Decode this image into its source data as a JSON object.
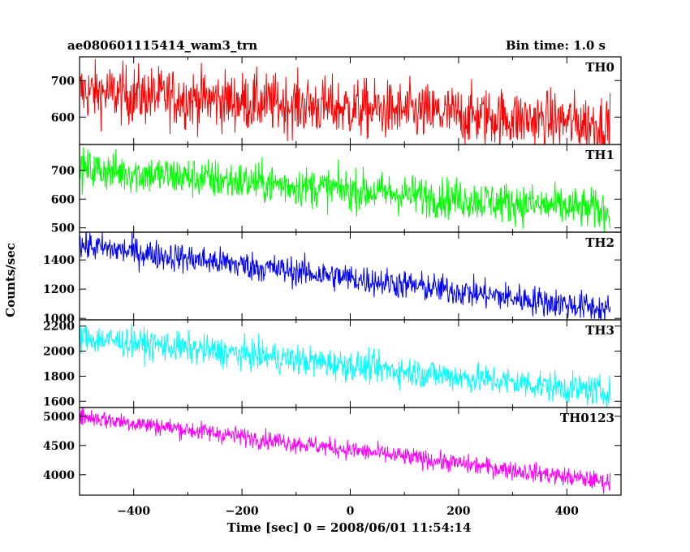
{
  "header": {
    "title": "ae080601115414_wam3_trn",
    "bin_time": "Bin time: 1.0 s"
  },
  "chart_data": {
    "type": "line",
    "ylabel": "Counts/sec",
    "xlabel": "Time [sec] 0 = 2008/06/01 11:54:14",
    "xlim": [
      -500,
      500
    ],
    "x_range": [
      -500,
      480
    ],
    "xticks": [
      -400,
      -200,
      0,
      200,
      400
    ],
    "grid": false,
    "panels": [
      {
        "name": "TH0",
        "color": "#ff0000",
        "ylim": [
          525,
          765
        ],
        "yticks": [
          600,
          700
        ],
        "trend_start": 670,
        "trend_end": 580,
        "noise": 40
      },
      {
        "name": "TH1",
        "color": "#00ff00",
        "ylim": [
          485,
          790
        ],
        "yticks": [
          500,
          600,
          700
        ],
        "trend_start": 705,
        "trend_end": 560,
        "noise": 35
      },
      {
        "name": "TH2",
        "color": "#0000ff",
        "ylim": [
          990,
          1590
        ],
        "yticks": [
          1000,
          1200,
          1400
        ],
        "trend_start": 1500,
        "trend_end": 1060,
        "noise": 50
      },
      {
        "name": "TH3",
        "color": "#00ffff",
        "ylim": [
          1550,
          2250
        ],
        "yticks": [
          1600,
          1800,
          2000,
          2200
        ],
        "trend_start": 2110,
        "trend_end": 1670,
        "noise": 60
      },
      {
        "name": "TH0123",
        "color": "#ff00ff",
        "ylim": [
          3650,
          5150
        ],
        "yticks": [
          4000,
          4500,
          5000
        ],
        "trend_start": 5000,
        "trend_end": 3870,
        "noise": 80
      }
    ]
  }
}
